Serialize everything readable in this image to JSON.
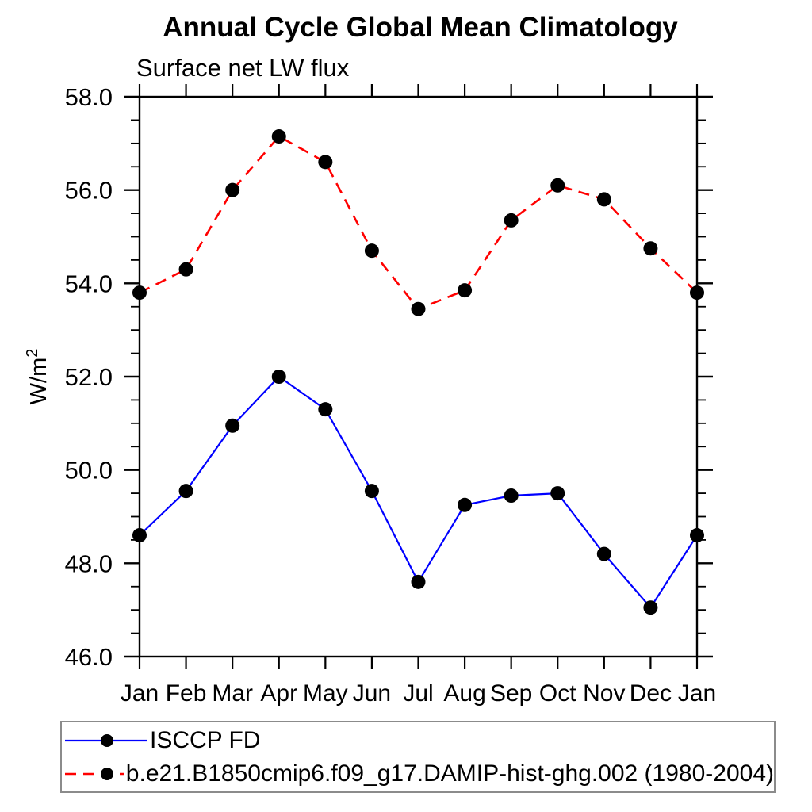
{
  "chart_data": {
    "type": "line",
    "title": "Annual Cycle Global Mean Climatology",
    "subtitle": "Surface net LW flux",
    "ylabel": "W/m²",
    "xlabel": "",
    "categories": [
      "Jan",
      "Feb",
      "Mar",
      "Apr",
      "May",
      "Jun",
      "Jul",
      "Aug",
      "Sep",
      "Oct",
      "Nov",
      "Dec",
      "Jan"
    ],
    "ylim": [
      46.0,
      58.0
    ],
    "ytick_major": 2.0,
    "ytick_minor": 0.5,
    "grid": "off",
    "legend_position": "bottom-left-box",
    "frame_color": "#000000",
    "series": [
      {
        "name": "ISCCP FD",
        "color": "#0000ff",
        "style": "solid",
        "marker": "circle",
        "marker_color": "#000000",
        "values": [
          48.6,
          49.55,
          50.95,
          52.0,
          51.3,
          49.55,
          47.6,
          49.25,
          49.45,
          49.5,
          48.2,
          47.05,
          48.6
        ]
      },
      {
        "name": "b.e21.B1850cmip6.f09_g17.DAMIP-hist-ghg.002 (1980-2004)",
        "color": "#ff0000",
        "style": "dashed",
        "marker": "circle",
        "marker_color": "#000000",
        "values": [
          53.8,
          54.3,
          56.0,
          57.15,
          56.6,
          54.7,
          53.45,
          53.85,
          55.35,
          56.1,
          55.8,
          54.75,
          53.8
        ]
      }
    ]
  }
}
